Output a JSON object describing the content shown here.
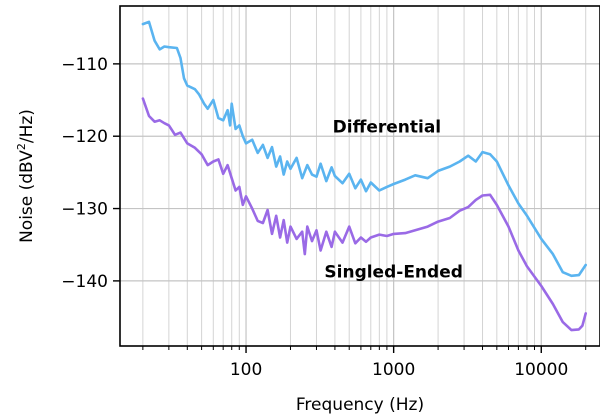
{
  "chart_data": {
    "type": "line",
    "title": "",
    "xlabel": "Frequency (Hz)",
    "ylabel_parts": [
      "Noise (dBV",
      "2",
      "/Hz)"
    ],
    "x_scale": "log",
    "xlim": [
      14,
      25000
    ],
    "ylim": [
      -149,
      -102
    ],
    "x_ticks": [
      100,
      1000,
      10000
    ],
    "x_tick_labels": [
      "100",
      "1000",
      "10000"
    ],
    "y_ticks": [
      -110,
      -120,
      -130,
      -140
    ],
    "y_tick_labels": [
      "−110",
      "−120",
      "−130",
      "−140"
    ],
    "grid": true,
    "annotations": [
      {
        "text": "Differential",
        "x": 900,
        "y": -119.5
      },
      {
        "text": "Singled-Ended",
        "x": 1000,
        "y": -139.5
      }
    ],
    "colors": {
      "differential": "#5ab4f0",
      "single_ended": "#9a6ae6"
    },
    "series": [
      {
        "key": "differential",
        "points": [
          [
            20,
            -104.5
          ],
          [
            22,
            -104.2
          ],
          [
            24,
            -106.8
          ],
          [
            26,
            -108
          ],
          [
            28,
            -107.6
          ],
          [
            30,
            -107.7
          ],
          [
            34,
            -107.8
          ],
          [
            36,
            -109.2
          ],
          [
            38,
            -112
          ],
          [
            40,
            -113
          ],
          [
            45,
            -113.5
          ],
          [
            48,
            -114.2
          ],
          [
            52,
            -115.5
          ],
          [
            55,
            -116.2
          ],
          [
            60,
            -115
          ],
          [
            65,
            -117.5
          ],
          [
            70,
            -117.8
          ],
          [
            75,
            -116.4
          ],
          [
            78,
            -118.5
          ],
          [
            80,
            -115.5
          ],
          [
            85,
            -119
          ],
          [
            90,
            -118.5
          ],
          [
            95,
            -120
          ],
          [
            100,
            -121
          ],
          [
            110,
            -120.5
          ],
          [
            120,
            -122.3
          ],
          [
            130,
            -121.2
          ],
          [
            140,
            -123
          ],
          [
            150,
            -121.5
          ],
          [
            160,
            -124.2
          ],
          [
            170,
            -122.8
          ],
          [
            180,
            -125.3
          ],
          [
            190,
            -123.5
          ],
          [
            200,
            -124.5
          ],
          [
            220,
            -123
          ],
          [
            240,
            -125.8
          ],
          [
            260,
            -124
          ],
          [
            280,
            -125.3
          ],
          [
            300,
            -125.6
          ],
          [
            320,
            -123.8
          ],
          [
            350,
            -126.2
          ],
          [
            380,
            -124.3
          ],
          [
            400,
            -125.5
          ],
          [
            450,
            -126.5
          ],
          [
            500,
            -125.2
          ],
          [
            550,
            -127.2
          ],
          [
            600,
            -126
          ],
          [
            650,
            -127.6
          ],
          [
            700,
            -126.4
          ],
          [
            800,
            -127.5
          ],
          [
            900,
            -127
          ],
          [
            1000,
            -126.6
          ],
          [
            1200,
            -126
          ],
          [
            1400,
            -125.4
          ],
          [
            1700,
            -125.8
          ],
          [
            2000,
            -124.8
          ],
          [
            2400,
            -124.2
          ],
          [
            2800,
            -123.5
          ],
          [
            3200,
            -122.7
          ],
          [
            3600,
            -123.5
          ],
          [
            4000,
            -122.2
          ],
          [
            4500,
            -122.5
          ],
          [
            5000,
            -123.5
          ],
          [
            6000,
            -126.8
          ],
          [
            7000,
            -129.3
          ],
          [
            8000,
            -131
          ],
          [
            10000,
            -134.2
          ],
          [
            12000,
            -136.3
          ],
          [
            14000,
            -138.8
          ],
          [
            16000,
            -139.3
          ],
          [
            18000,
            -139.2
          ],
          [
            20000,
            -137.8
          ]
        ]
      },
      {
        "key": "single_ended",
        "points": [
          [
            20,
            -114.8
          ],
          [
            22,
            -117.2
          ],
          [
            24,
            -118
          ],
          [
            26,
            -117.8
          ],
          [
            28,
            -118.2
          ],
          [
            30,
            -118.5
          ],
          [
            33,
            -119.8
          ],
          [
            36,
            -119.5
          ],
          [
            40,
            -121
          ],
          [
            45,
            -121.6
          ],
          [
            50,
            -122.5
          ],
          [
            55,
            -124
          ],
          [
            60,
            -123.5
          ],
          [
            65,
            -123.2
          ],
          [
            70,
            -125.2
          ],
          [
            75,
            -124
          ],
          [
            80,
            -125.8
          ],
          [
            85,
            -127.5
          ],
          [
            90,
            -127
          ],
          [
            95,
            -129.5
          ],
          [
            100,
            -128.3
          ],
          [
            110,
            -130
          ],
          [
            120,
            -131.7
          ],
          [
            130,
            -132
          ],
          [
            140,
            -130.2
          ],
          [
            150,
            -133.5
          ],
          [
            160,
            -131
          ],
          [
            170,
            -134
          ],
          [
            180,
            -131.6
          ],
          [
            190,
            -134.7
          ],
          [
            200,
            -132.5
          ],
          [
            220,
            -134.2
          ],
          [
            240,
            -133.2
          ],
          [
            250,
            -136.3
          ],
          [
            260,
            -132.5
          ],
          [
            280,
            -134.5
          ],
          [
            300,
            -133
          ],
          [
            320,
            -135.8
          ],
          [
            350,
            -133.2
          ],
          [
            380,
            -135.3
          ],
          [
            400,
            -133.2
          ],
          [
            450,
            -134.7
          ],
          [
            500,
            -132.5
          ],
          [
            550,
            -134.8
          ],
          [
            600,
            -134
          ],
          [
            650,
            -134.6
          ],
          [
            700,
            -134
          ],
          [
            800,
            -133.6
          ],
          [
            900,
            -133.8
          ],
          [
            1000,
            -133.5
          ],
          [
            1200,
            -133.4
          ],
          [
            1400,
            -133
          ],
          [
            1700,
            -132.5
          ],
          [
            2000,
            -131.8
          ],
          [
            2400,
            -131.3
          ],
          [
            2800,
            -130.3
          ],
          [
            3200,
            -129.8
          ],
          [
            3600,
            -128.8
          ],
          [
            4000,
            -128.2
          ],
          [
            4500,
            -128.1
          ],
          [
            5000,
            -129.5
          ],
          [
            6000,
            -132.5
          ],
          [
            7000,
            -135.8
          ],
          [
            8000,
            -138
          ],
          [
            10000,
            -140.7
          ],
          [
            12000,
            -143.2
          ],
          [
            14000,
            -145.7
          ],
          [
            16000,
            -146.8
          ],
          [
            18000,
            -146.7
          ],
          [
            19000,
            -146.2
          ],
          [
            20000,
            -144.5
          ]
        ]
      }
    ]
  }
}
